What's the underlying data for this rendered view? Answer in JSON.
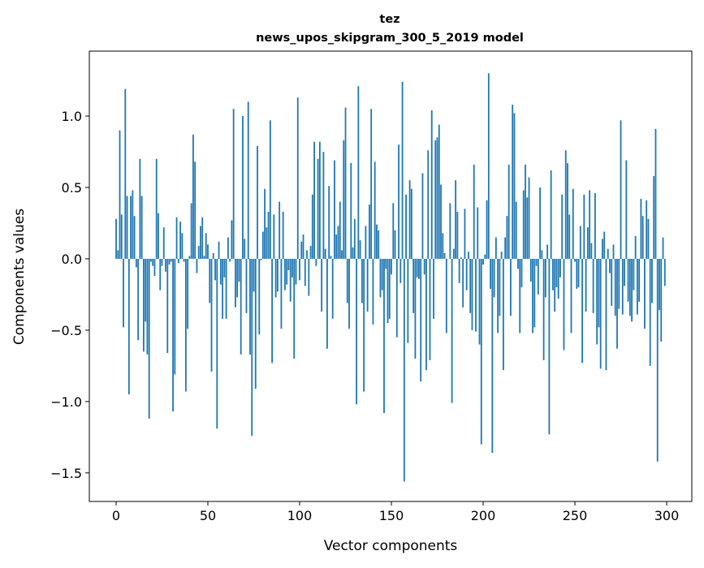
{
  "chart_data": {
    "type": "bar",
    "title": "tez",
    "subtitle": "news_upos_skipgram_300_5_2019 model",
    "xlabel": "Vector components",
    "ylabel": "Components values",
    "xlim": [
      -14.6,
      313.7
    ],
    "ylim": [
      -1.7,
      1.455
    ],
    "xticks": [
      0,
      50,
      100,
      150,
      200,
      250,
      300
    ],
    "xtick_labels": [
      "0",
      "50",
      "100",
      "150",
      "200",
      "250",
      "300"
    ],
    "yticks": [
      -1.5,
      -1.0,
      -0.5,
      0.0,
      0.5,
      1.0
    ],
    "ytick_labels": [
      "−1.5",
      "−1.0",
      "−0.5",
      "0.0",
      "0.5",
      "1.0"
    ],
    "grid": false,
    "bar_color": "#1f77b4",
    "values": [
      0.28,
      0.06,
      0.9,
      0.31,
      -0.48,
      1.19,
      0.44,
      -0.95,
      0.44,
      0.48,
      0.3,
      -0.06,
      -0.57,
      0.7,
      0.44,
      -0.65,
      -0.44,
      -0.67,
      -1.12,
      -0.02,
      -0.05,
      -0.12,
      0.7,
      0.32,
      -0.22,
      -0.05,
      0.22,
      -0.09,
      -0.66,
      -0.04,
      -0.02,
      -1.07,
      -0.81,
      0.29,
      -0.03,
      0.26,
      0.18,
      -0.02,
      -0.93,
      -0.49,
      0.02,
      0.39,
      0.87,
      0.68,
      -0.1,
      0.09,
      0.23,
      0.29,
      0.02,
      0.18,
      0.1,
      -0.31,
      -0.79,
      0.04,
      -0.15,
      -1.19,
      0.12,
      -0.18,
      -0.42,
      -0.13,
      -0.42,
      0.15,
      -0.02,
      0.27,
      1.05,
      -0.34,
      -0.27,
      -0.16,
      -0.67,
      1.0,
      0.14,
      -0.38,
      1.1,
      -0.67,
      -1.24,
      -0.23,
      -0.91,
      0.79,
      -0.53,
      -0.01,
      0.19,
      0.49,
      0.22,
      0.33,
      0.97,
      -0.73,
      0.31,
      -0.27,
      -0.23,
      0.4,
      -0.49,
      0.33,
      -0.22,
      -0.18,
      -0.08,
      -0.3,
      -0.13,
      -0.7,
      -0.18,
      1.13,
      -0.15,
      0.12,
      0.17,
      -0.19,
      0.06,
      -0.26,
      0.09,
      0.45,
      0.82,
      -0.05,
      0.7,
      0.82,
      -0.37,
      0.75,
      0.07,
      -0.63,
      0.51,
      0.02,
      -0.42,
      0.69,
      0.17,
      0.23,
      0.4,
      0.06,
      0.83,
      1.06,
      -0.31,
      -0.49,
      0.67,
      0.08,
      0.28,
      -1.02,
      1.21,
      0.13,
      -0.31,
      -0.93,
      0.23,
      -0.37,
      0.38,
      1.05,
      -0.46,
      0.68,
      0.24,
      0.2,
      -0.27,
      -0.22,
      -1.08,
      -0.07,
      -0.45,
      -0.42,
      -0.11,
      0.39,
      0.2,
      -0.55,
      0.8,
      -0.17,
      1.24,
      -1.56,
      0.45,
      -0.59,
      0.55,
      0.49,
      -0.38,
      -0.7,
      -0.13,
      -0.14,
      -0.86,
      0.6,
      -0.11,
      -0.78,
      0.76,
      -0.71,
      1.04,
      -0.42,
      0.83,
      0.85,
      0.94,
      0.52,
      0.18,
      0.04,
      -0.52,
      0.0,
      0.39,
      -1.01,
      0.07,
      0.55,
      0.33,
      -0.17,
      0.01,
      -0.34,
      0.35,
      -0.22,
      0.05,
      -0.38,
      -0.5,
      0.66,
      -0.51,
      0.36,
      -0.6,
      -1.3,
      -0.04,
      0.03,
      0.41,
      1.3,
      -0.21,
      -1.36,
      -0.27,
      0.15,
      -0.52,
      -0.4,
      0.05,
      -0.78,
      0.15,
      0.3,
      0.66,
      -0.4,
      1.08,
      1.02,
      0.4,
      -0.07,
      -0.52,
      -0.2,
      0.48,
      0.66,
      0.43,
      0.57,
      -0.16,
      -0.52,
      -0.48,
      -0.05,
      -0.25,
      0.5,
      0.06,
      -0.71,
      -0.27,
      0.1,
      -1.23,
      0.62,
      -0.22,
      -0.37,
      -0.2,
      -0.28,
      -0.13,
      0.45,
      -0.64,
      0.76,
      0.67,
      0.31,
      -0.52,
      0.49,
      -0.02,
      -0.21,
      -0.2,
      0.23,
      -0.73,
      0.45,
      -0.37,
      0.22,
      0.48,
      0.11,
      -0.38,
      0.46,
      -0.6,
      -0.48,
      -0.77,
      0.14,
      0.19,
      -0.78,
      0.07,
      -0.1,
      -0.33,
      0.1,
      -0.4,
      -0.63,
      -0.35,
      0.97,
      -0.39,
      -0.19,
      0.69,
      -0.3,
      -0.4,
      -0.44,
      -0.22,
      0.16,
      -0.39,
      -0.3,
      0.42,
      0.3,
      -0.49,
      0.41,
      0.28,
      -0.75,
      -0.31,
      0.58,
      0.91,
      -1.42,
      -0.36,
      -0.58,
      0.15,
      -0.19
    ]
  }
}
